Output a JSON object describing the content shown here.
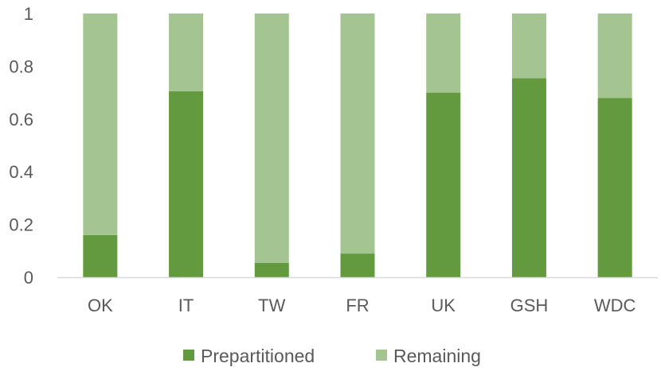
{
  "chart_data": {
    "type": "bar",
    "stacked": true,
    "categories": [
      "OK",
      "IT",
      "TW",
      "FR",
      "UK",
      "GSH",
      "WDC"
    ],
    "series": [
      {
        "name": "Prepartitioned",
        "values": [
          0.16,
          0.705,
          0.055,
          0.09,
          0.7,
          0.755,
          0.68
        ],
        "color": "#639A3F"
      },
      {
        "name": "Remaining",
        "values": [
          0.84,
          0.295,
          0.945,
          0.91,
          0.3,
          0.245,
          0.32
        ],
        "color": "#A4C591"
      }
    ],
    "ylim": [
      0,
      1
    ],
    "yticks": [
      "0",
      "0.2",
      "0.4",
      "0.6",
      "0.8",
      "1"
    ],
    "title": "",
    "xlabel": "",
    "ylabel": "",
    "legend_position": "bottom",
    "axis_color": "#D9D9D9"
  }
}
